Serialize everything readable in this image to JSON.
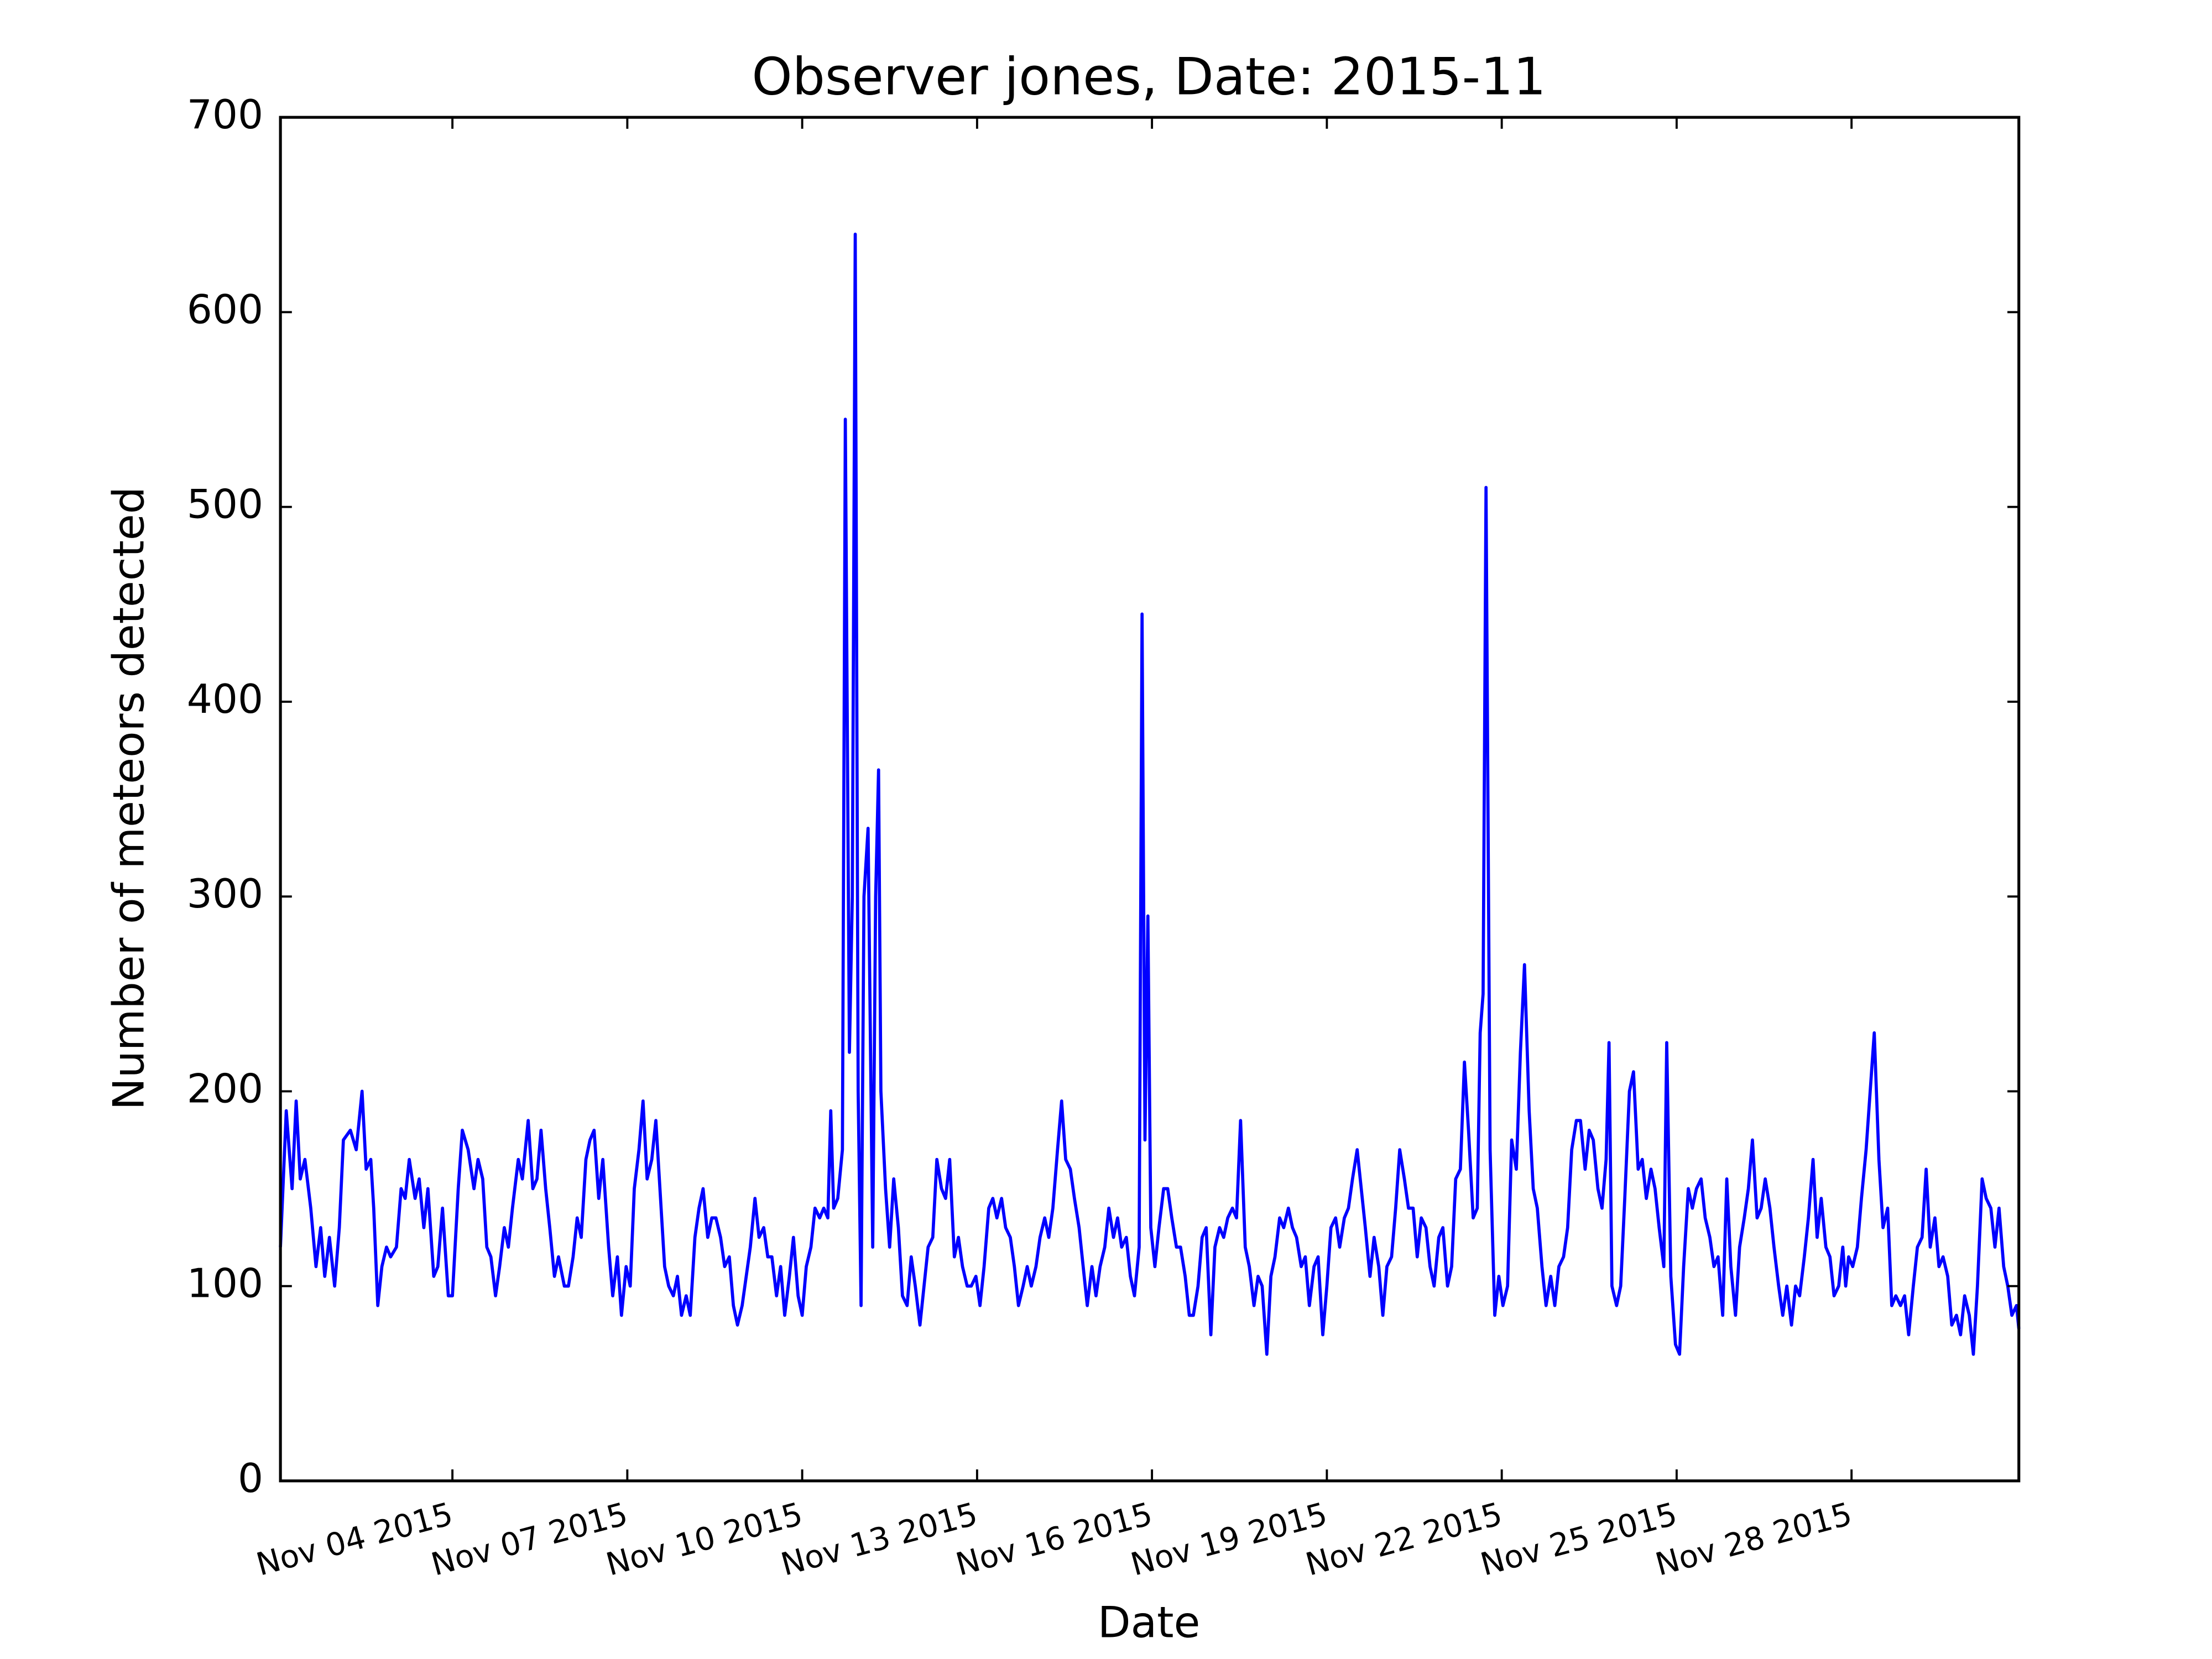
{
  "chart_data": {
    "type": "line",
    "title": "Observer jones, Date: 2015-11",
    "x_label": "Date",
    "y_label": "Number of meteors detected",
    "color": "#0000ff",
    "xlim": [
      1.05,
      30.87
    ],
    "xticks": [
      {
        "value": 4,
        "label": "Nov 04 2015"
      },
      {
        "value": 7,
        "label": "Nov 07 2015"
      },
      {
        "value": 10,
        "label": "Nov 10 2015"
      },
      {
        "value": 13,
        "label": "Nov 13 2015"
      },
      {
        "value": 16,
        "label": "Nov 16 2015"
      },
      {
        "value": 19,
        "label": "Nov 19 2015"
      },
      {
        "value": 22,
        "label": "Nov 22 2015"
      },
      {
        "value": 25,
        "label": "Nov 25 2015"
      },
      {
        "value": 28,
        "label": "Nov 28 2015"
      }
    ],
    "ylim": [
      0,
      700
    ],
    "yticks": [
      0,
      100,
      200,
      300,
      400,
      500,
      600,
      700
    ],
    "x": [
      1.05,
      1.15,
      1.25,
      1.32,
      1.39,
      1.47,
      1.57,
      1.66,
      1.74,
      1.81,
      1.89,
      1.98,
      2.06,
      2.13,
      2.25,
      2.35,
      2.45,
      2.52,
      2.6,
      2.65,
      2.72,
      2.79,
      2.87,
      2.94,
      3.04,
      3.12,
      3.19,
      3.26,
      3.36,
      3.43,
      3.51,
      3.58,
      3.68,
      3.75,
      3.83,
      3.93,
      4.0,
      4.1,
      4.17,
      4.27,
      4.37,
      4.44,
      4.52,
      4.59,
      4.66,
      4.74,
      4.81,
      4.89,
      4.96,
      5.03,
      5.13,
      5.2,
      5.3,
      5.38,
      5.45,
      5.52,
      5.6,
      5.67,
      5.75,
      5.82,
      5.92,
      5.99,
      6.07,
      6.14,
      6.21,
      6.29,
      6.36,
      6.43,
      6.51,
      6.58,
      6.68,
      6.75,
      6.83,
      6.9,
      6.98,
      7.05,
      7.12,
      7.2,
      7.27,
      7.34,
      7.42,
      7.49,
      7.57,
      7.64,
      7.71,
      7.79,
      7.86,
      7.93,
      8.01,
      8.08,
      8.16,
      8.23,
      8.3,
      8.38,
      8.45,
      8.52,
      8.6,
      8.67,
      8.75,
      8.82,
      8.89,
      8.97,
      9.04,
      9.11,
      9.19,
      9.26,
      9.34,
      9.41,
      9.48,
      9.56,
      9.63,
      9.7,
      9.78,
      9.85,
      9.93,
      10.0,
      10.07,
      10.15,
      10.22,
      10.3,
      10.37,
      10.44,
      10.49,
      10.54,
      10.61,
      10.69,
      10.74,
      10.81,
      10.86,
      10.91,
      10.96,
      11.01,
      11.06,
      11.13,
      11.21,
      11.26,
      11.31,
      11.35,
      11.43,
      11.5,
      11.57,
      11.65,
      11.72,
      11.8,
      11.87,
      11.94,
      12.02,
      12.09,
      12.16,
      12.24,
      12.31,
      12.39,
      12.46,
      12.53,
      12.61,
      12.68,
      12.75,
      12.83,
      12.9,
      12.98,
      13.05,
      13.12,
      13.2,
      13.27,
      13.34,
      13.42,
      13.49,
      13.57,
      13.64,
      13.71,
      13.79,
      13.86,
      13.93,
      14.01,
      14.08,
      14.16,
      14.23,
      14.3,
      14.38,
      14.45,
      14.52,
      14.6,
      14.67,
      14.75,
      14.82,
      14.89,
      14.97,
      15.04,
      15.11,
      15.19,
      15.26,
      15.34,
      15.41,
      15.48,
      15.56,
      15.63,
      15.7,
      15.78,
      15.83,
      15.88,
      15.93,
      15.98,
      16.05,
      16.12,
      16.2,
      16.27,
      16.34,
      16.42,
      16.49,
      16.57,
      16.64,
      16.71,
      16.79,
      16.86,
      16.93,
      17.01,
      17.08,
      17.16,
      17.23,
      17.3,
      17.38,
      17.45,
      17.52,
      17.6,
      17.67,
      17.75,
      17.82,
      17.89,
      17.97,
      18.04,
      18.11,
      18.19,
      18.26,
      18.34,
      18.41,
      18.48,
      18.56,
      18.63,
      18.7,
      18.78,
      18.85,
      18.93,
      19.0,
      19.07,
      19.15,
      19.22,
      19.3,
      19.37,
      19.44,
      19.52,
      19.59,
      19.66,
      19.74,
      19.81,
      19.89,
      19.96,
      20.03,
      20.11,
      20.18,
      20.25,
      20.33,
      20.4,
      20.48,
      20.55,
      20.62,
      20.7,
      20.77,
      20.84,
      20.92,
      20.99,
      21.07,
      21.14,
      21.21,
      21.29,
      21.36,
      21.43,
      21.51,
      21.58,
      21.63,
      21.68,
      21.73,
      21.8,
      21.88,
      21.95,
      22.02,
      22.1,
      22.17,
      22.25,
      22.32,
      22.39,
      22.47,
      22.54,
      22.61,
      22.69,
      22.76,
      22.84,
      22.91,
      22.98,
      23.06,
      23.13,
      23.2,
      23.28,
      23.35,
      23.43,
      23.5,
      23.57,
      23.65,
      23.72,
      23.79,
      23.84,
      23.89,
      23.97,
      24.04,
      24.11,
      24.19,
      24.26,
      24.34,
      24.41,
      24.48,
      24.56,
      24.63,
      24.7,
      24.78,
      24.83,
      24.9,
      24.98,
      25.05,
      25.12,
      25.2,
      25.27,
      25.34,
      25.42,
      25.49,
      25.57,
      25.64,
      25.71,
      25.79,
      25.86,
      25.93,
      26.01,
      26.08,
      26.16,
      26.23,
      26.3,
      26.38,
      26.45,
      26.52,
      26.6,
      26.67,
      26.75,
      26.82,
      26.89,
      26.97,
      27.04,
      27.11,
      27.19,
      27.26,
      27.34,
      27.41,
      27.48,
      27.56,
      27.63,
      27.7,
      27.78,
      27.85,
      27.9,
      27.95,
      28.02,
      28.1,
      28.17,
      28.25,
      28.32,
      28.39,
      28.47,
      28.54,
      28.62,
      28.69,
      28.76,
      28.84,
      28.91,
      28.98,
      29.06,
      29.13,
      29.21,
      29.28,
      29.35,
      29.43,
      29.5,
      29.57,
      29.65,
      29.72,
      29.8,
      29.87,
      29.94,
      30.02,
      30.09,
      30.16,
      30.24,
      30.31,
      30.39,
      30.46,
      30.53,
      30.61,
      30.68,
      30.75,
      30.83,
      30.87
    ],
    "values": [
      120,
      190,
      150,
      195,
      155,
      165,
      140,
      110,
      130,
      105,
      125,
      100,
      130,
      175,
      180,
      170,
      200,
      160,
      165,
      140,
      90,
      110,
      120,
      115,
      120,
      150,
      145,
      165,
      145,
      155,
      130,
      150,
      105,
      110,
      140,
      95,
      95,
      150,
      180,
      170,
      150,
      165,
      155,
      120,
      115,
      95,
      110,
      130,
      120,
      140,
      165,
      155,
      185,
      150,
      155,
      180,
      150,
      130,
      105,
      115,
      100,
      100,
      115,
      135,
      125,
      165,
      175,
      180,
      145,
      165,
      120,
      95,
      115,
      85,
      110,
      100,
      150,
      170,
      195,
      155,
      165,
      185,
      145,
      110,
      100,
      95,
      105,
      85,
      95,
      85,
      125,
      140,
      150,
      125,
      135,
      135,
      125,
      110,
      115,
      90,
      80,
      90,
      105,
      120,
      145,
      125,
      130,
      115,
      115,
      95,
      110,
      85,
      105,
      125,
      95,
      85,
      110,
      120,
      140,
      135,
      140,
      135,
      190,
      140,
      145,
      170,
      545,
      220,
      300,
      640,
      200,
      90,
      300,
      335,
      120,
      300,
      365,
      200,
      150,
      120,
      155,
      130,
      95,
      90,
      115,
      100,
      80,
      100,
      120,
      125,
      165,
      150,
      145,
      165,
      115,
      125,
      110,
      100,
      100,
      105,
      90,
      110,
      140,
      145,
      135,
      145,
      130,
      125,
      110,
      90,
      100,
      110,
      100,
      110,
      125,
      135,
      125,
      140,
      170,
      195,
      165,
      160,
      145,
      130,
      110,
      90,
      110,
      95,
      110,
      120,
      140,
      125,
      135,
      120,
      125,
      105,
      95,
      120,
      445,
      175,
      290,
      130,
      110,
      130,
      150,
      150,
      135,
      120,
      120,
      105,
      85,
      85,
      100,
      125,
      130,
      75,
      120,
      130,
      125,
      135,
      140,
      135,
      185,
      120,
      110,
      90,
      105,
      100,
      65,
      105,
      115,
      135,
      130,
      140,
      130,
      125,
      110,
      115,
      90,
      110,
      115,
      75,
      100,
      130,
      135,
      120,
      135,
      140,
      155,
      170,
      150,
      130,
      105,
      125,
      110,
      85,
      110,
      115,
      140,
      170,
      155,
      140,
      140,
      115,
      135,
      130,
      110,
      100,
      125,
      130,
      100,
      110,
      155,
      160,
      215,
      180,
      135,
      140,
      230,
      250,
      510,
      170,
      85,
      105,
      90,
      100,
      175,
      160,
      220,
      265,
      190,
      150,
      140,
      110,
      90,
      105,
      90,
      110,
      115,
      130,
      170,
      185,
      185,
      160,
      180,
      175,
      150,
      140,
      165,
      225,
      100,
      90,
      100,
      145,
      200,
      210,
      160,
      165,
      145,
      160,
      150,
      130,
      110,
      225,
      105,
      70,
      65,
      110,
      150,
      140,
      150,
      155,
      135,
      125,
      110,
      115,
      85,
      155,
      110,
      85,
      120,
      135,
      150,
      175,
      135,
      140,
      155,
      140,
      120,
      100,
      85,
      100,
      80,
      100,
      95,
      115,
      135,
      165,
      125,
      145,
      120,
      115,
      95,
      100,
      120,
      100,
      115,
      110,
      120,
      145,
      170,
      200,
      230,
      165,
      130,
      140,
      90,
      95,
      90,
      95,
      75,
      100,
      120,
      125,
      160,
      120,
      135,
      110,
      115,
      105,
      80,
      85,
      75,
      95,
      85,
      65,
      100,
      155,
      145,
      140,
      120,
      140,
      110,
      100,
      85,
      90,
      78
    ]
  }
}
